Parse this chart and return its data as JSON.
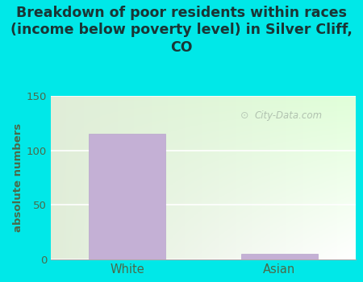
{
  "title": "Breakdown of poor residents within races\n(income below poverty level) in Silver Cliff,\nCO",
  "categories": [
    "White",
    "Asian"
  ],
  "values": [
    115,
    5
  ],
  "bar_color": "#c4b0d5",
  "bar_edge_color": "#b8a5cc",
  "ylabel": "absolute numbers",
  "ylim": [
    0,
    150
  ],
  "yticks": [
    0,
    50,
    100,
    150
  ],
  "background_color": "#00e8e8",
  "title_color": "#1a3535",
  "title_fontsize": 12.5,
  "axis_label_color": "#4a6a4a",
  "tick_color": "#4a6a4a",
  "watermark_text": "City-Data.com",
  "watermark_color": "#a8b8a8",
  "grid_color": "#e0e8e0"
}
